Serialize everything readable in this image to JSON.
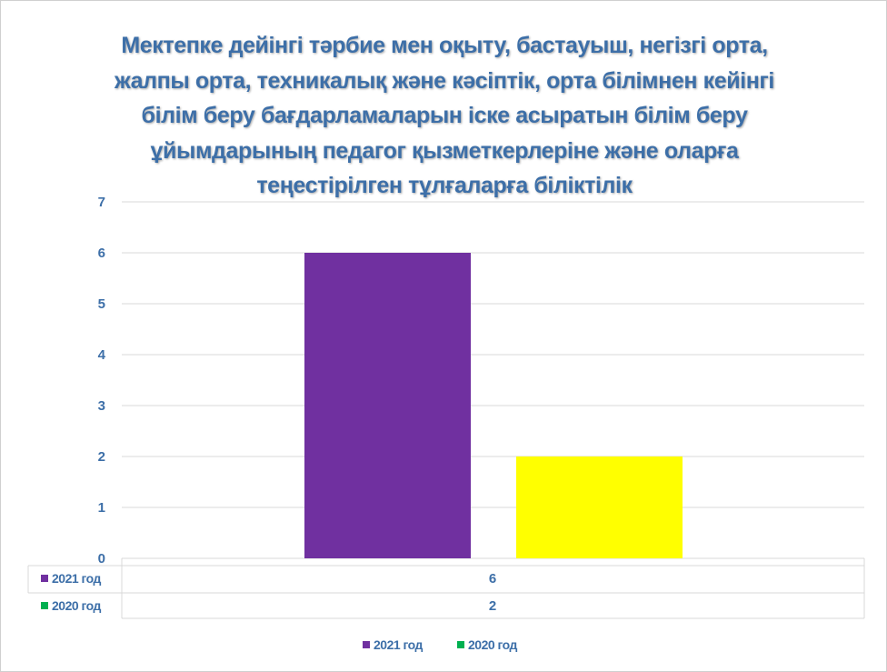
{
  "chart_data": {
    "type": "bar",
    "title": "Мектепке дейінгі тәрбие мен оқыту, бастауыш, негізгі орта, жалпы орта, техникалық және кәсіптік, орта білімнен кейінгі білім беру бағдарламаларын іске асыратын білім беру ұйымдарының педагог қызметкерлеріне және оларға теңестірілген тұлғаларға біліктілік",
    "categories": [
      ""
    ],
    "series": [
      {
        "name": "2021 год",
        "values": [
          6
        ],
        "color": "#7030a0",
        "legend_color": "#7030a0"
      },
      {
        "name": "2020 год",
        "values": [
          2
        ],
        "color": "#ffff00",
        "legend_color": "#00b050"
      }
    ],
    "ylim": [
      0,
      7
    ],
    "yticks": [
      "0",
      "1",
      "2",
      "3",
      "4",
      "5",
      "6",
      "7"
    ],
    "grid": true,
    "legend_placement": "bottom",
    "data_table": true,
    "colors": {
      "text": "#3d6fa8",
      "grid": "#d9d9d9"
    }
  }
}
